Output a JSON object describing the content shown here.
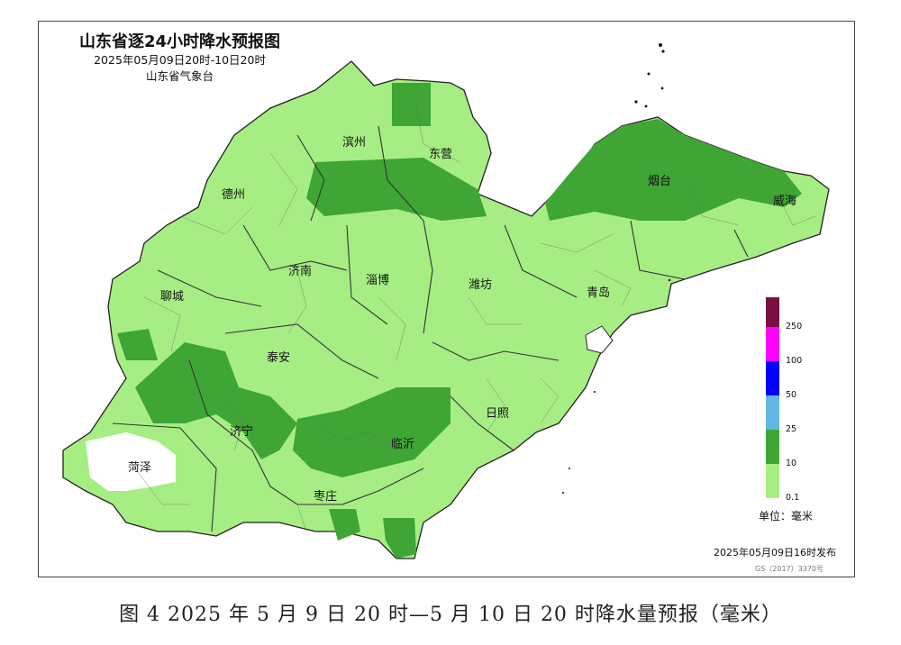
{
  "title": {
    "main": "山东省逐24小时降水预报图",
    "period": "2025年05月09日20时-10日20时",
    "agency": "山东省气象台"
  },
  "cities": [
    {
      "name": "滨州"
    },
    {
      "name": "东营"
    },
    {
      "name": "德州"
    },
    {
      "name": "烟台"
    },
    {
      "name": "威海"
    },
    {
      "name": "济南"
    },
    {
      "name": "淄博"
    },
    {
      "name": "潍坊"
    },
    {
      "name": "聊城"
    },
    {
      "name": "青岛"
    },
    {
      "name": "泰安"
    },
    {
      "name": "日照"
    },
    {
      "name": "济宁"
    },
    {
      "name": "临沂"
    },
    {
      "name": "菏泽"
    },
    {
      "name": "枣庄"
    }
  ],
  "legend": {
    "unit": "单位：毫米",
    "ticks": [
      "250",
      "100",
      "50",
      "25",
      "10",
      "0.1"
    ],
    "colors": {
      "level_250_plus": "#7b0f45",
      "level_100_250": "#ff00ff",
      "level_50_100": "#0000ff",
      "level_25_50": "#62b6e4",
      "level_10_25": "#3fa535",
      "level_0_1_10": "#a6ee84",
      "no_rain": "#ffffff"
    }
  },
  "release": "2025年05月09日16时发布",
  "map_number": "GS（2017）3370号",
  "caption": "图 4  2025 年 5 月 9 日 20 时—5 月 10 日 20 时降水量预报（毫米）"
}
